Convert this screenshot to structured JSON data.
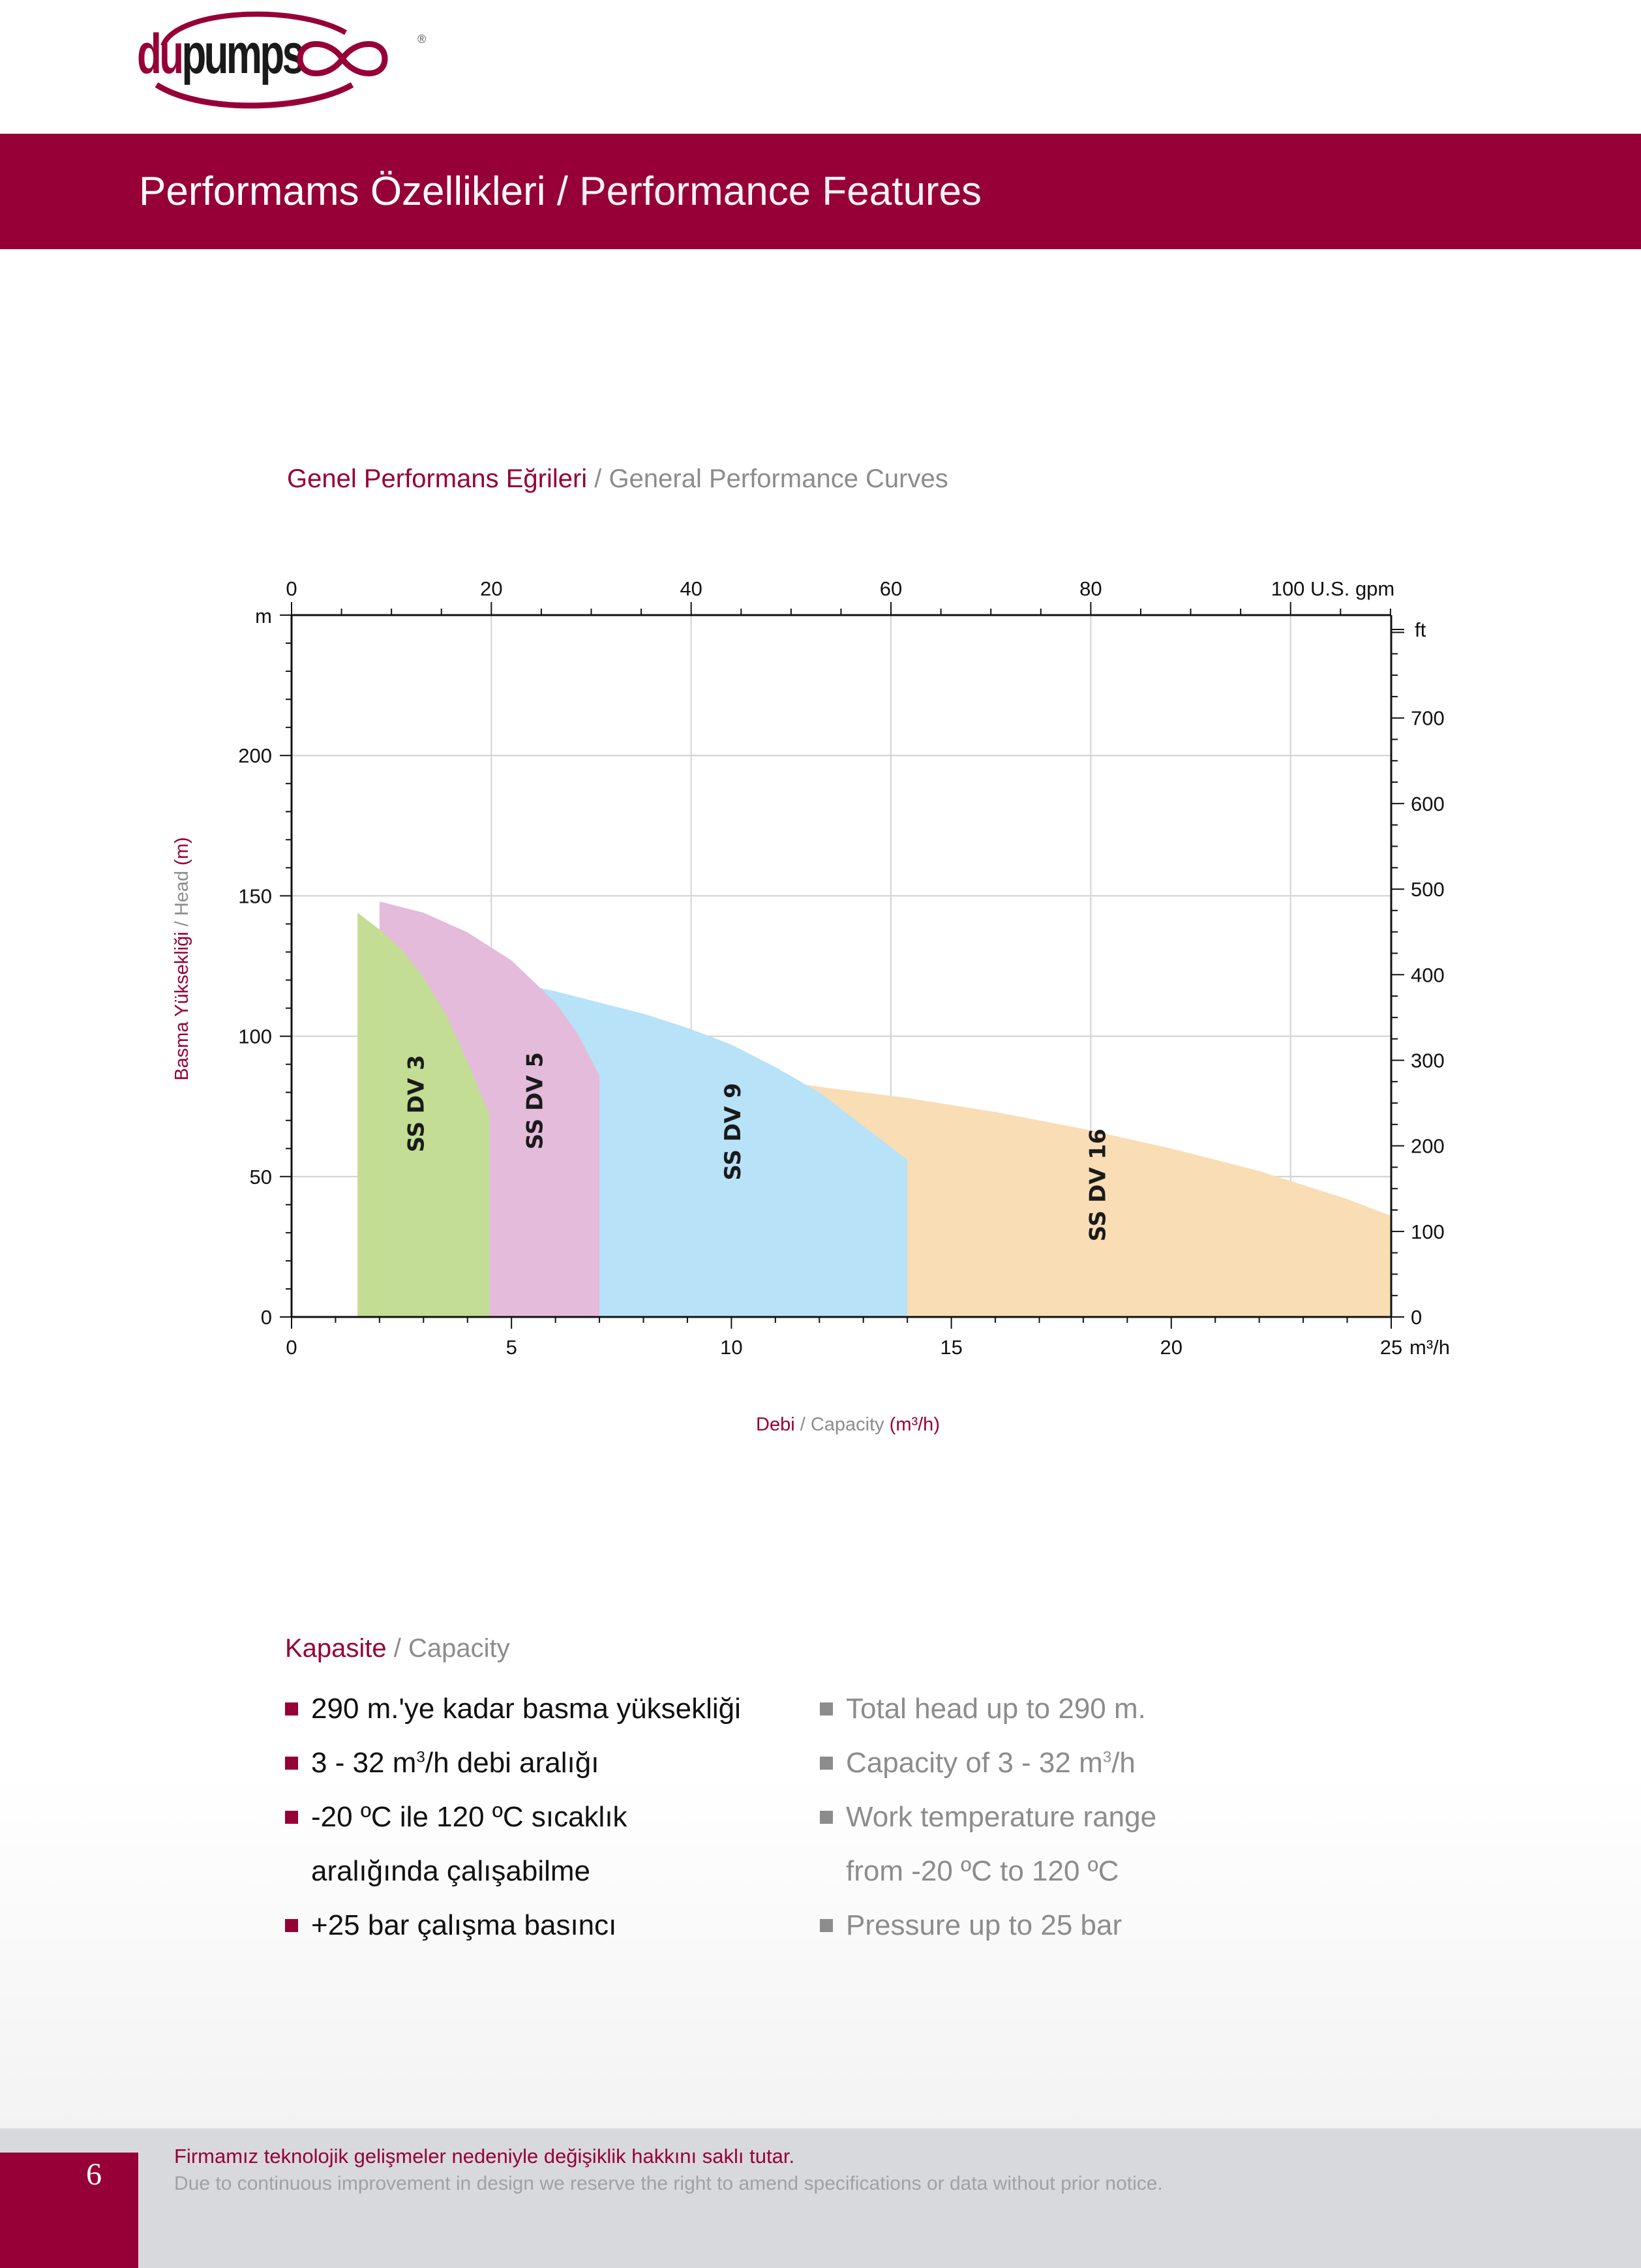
{
  "brand": {
    "logo_prefix": "du",
    "logo_suffix": "pumps",
    "registered_mark": "®",
    "primary_color": "#960037"
  },
  "header": {
    "title_tr": "Performams Özellikleri",
    "separator": " / ",
    "title_en": "Performance Features"
  },
  "curves_section": {
    "title_tr": "Genel Performans Eğrileri",
    "separator": " / ",
    "title_en": "General Performance Curves"
  },
  "chart_data": {
    "type": "area",
    "x_axis": {
      "unit": "m³/h",
      "range": [
        0,
        25
      ],
      "ticks": [
        0,
        5,
        10,
        15,
        20,
        25
      ],
      "title_tr": "Debi",
      "title_sep": " / ",
      "title_en": "Capacity",
      "title_unit": "(m³/h)"
    },
    "y_axis": {
      "unit": "m",
      "range": [
        0,
        250
      ],
      "ticks": [
        0,
        50,
        100,
        150,
        200
      ],
      "title_tr": "Basma Yüksekliği",
      "title_sep": " / ",
      "title_en": "Head",
      "title_unit": "(m)"
    },
    "top_axis": {
      "unit": "U.S. gpm",
      "ticks": [
        0,
        20,
        40,
        60,
        80,
        100
      ],
      "last_label": "100 U.S. gpm"
    },
    "right_axis": {
      "unit": "ft",
      "ticks": [
        0,
        100,
        200,
        300,
        400,
        500,
        600,
        700
      ]
    },
    "grid": true,
    "series": [
      {
        "name": "SS DV 16",
        "color": "#f9ddb5",
        "x": [
          11.2,
          12,
          14,
          16,
          18,
          20,
          22,
          24,
          25
        ],
        "y": [
          84,
          82,
          78,
          73,
          67,
          60,
          52,
          42,
          36
        ]
      },
      {
        "name": "SS DV 9",
        "color": "#b8e2f7",
        "x": [
          5.4,
          6,
          7,
          8,
          9,
          10,
          11,
          12,
          13,
          14
        ],
        "y": [
          118,
          116,
          112,
          108,
          103,
          97,
          89,
          80,
          68,
          56
        ]
      },
      {
        "name": "SS DV 5",
        "color": "#e4bbdb",
        "x": [
          2,
          3,
          4,
          5,
          6,
          6.5,
          7
        ],
        "y": [
          148,
          144,
          137,
          127,
          112,
          101,
          86
        ]
      },
      {
        "name": "SS DV 3",
        "color": "#c3dd94",
        "x": [
          1.5,
          2,
          2.5,
          3,
          3.5,
          4,
          4.5
        ],
        "y": [
          144,
          138,
          131,
          121,
          108,
          91,
          72
        ]
      }
    ]
  },
  "capacity_section": {
    "title_tr": "Kapasite",
    "separator": " / ",
    "title_en": "Capacity",
    "items_tr": [
      {
        "text": "290 m.'ye kadar basma yüksekliği"
      },
      {
        "pre": "3 - 32 m",
        "sup": "3",
        "post": "/h debi aralığı"
      },
      {
        "text": "-20 ºC ile 120 ºC sıcaklık"
      },
      {
        "text": "aralığında çalışabilme",
        "continuation": true
      },
      {
        "text": "+25 bar çalışma basıncı"
      }
    ],
    "items_en": [
      {
        "text": "Total head up to 290 m."
      },
      {
        "pre": "Capacity of 3 - 32 m",
        "sup": "3",
        "post": "/h"
      },
      {
        "text": "Work temperature range"
      },
      {
        "text": "from -20 ºC to 120 ºC",
        "continuation": true
      },
      {
        "text": "Pressure up to 25 bar"
      }
    ]
  },
  "footer": {
    "page_number": "6",
    "notice_tr": "Firmamız teknolojik gelişmeler nedeniyle değişiklik hakkını saklı tutar.",
    "notice_en": "Due to continuous improvement in design we reserve the right to amend specifications or data without prior notice."
  }
}
